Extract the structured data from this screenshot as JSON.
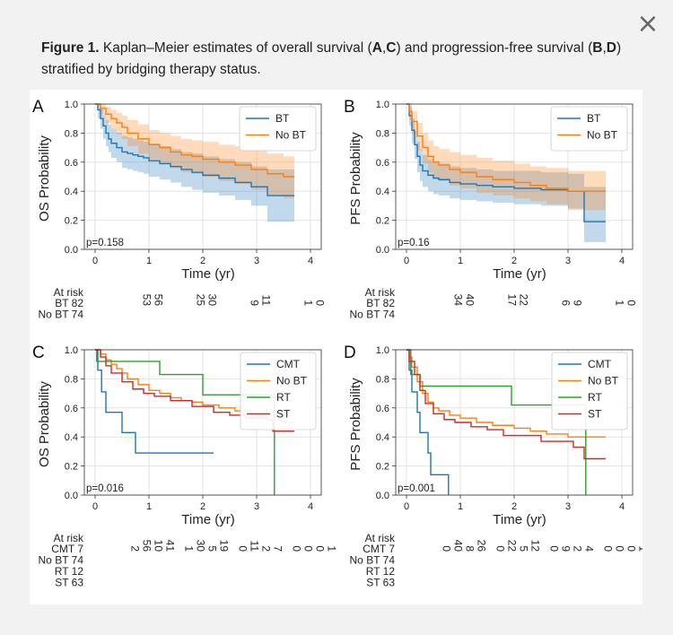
{
  "ui": {
    "close_glyph": "×"
  },
  "caption": {
    "figure_label": "Figure 1.",
    "part1": " Kaplan–Meier estimates of overall survival (",
    "A": "A",
    "comma1": ",",
    "C": "C",
    "part2": ") and progression-free survival (",
    "B": "B",
    "comma2": ",",
    "D": "D",
    "part3": ") stratified by bridging therapy status."
  },
  "colors": {
    "blue": "#1f77b4",
    "orange": "#ff7f0e",
    "green": "#2ca02c",
    "red": "#d62728"
  },
  "chart_data": [
    {
      "panel": "A",
      "type": "line",
      "subtype": "kaplan-meier",
      "ylabel": "OS Probability",
      "xlabel": "Time (yr)",
      "xlim": [
        -0.2,
        4.2
      ],
      "ylim": [
        0,
        1.0
      ],
      "xticks": [
        0,
        1,
        2,
        3,
        4
      ],
      "yticks": [
        0.0,
        0.2,
        0.4,
        0.6,
        0.8,
        1.0
      ],
      "yticklabels": [
        "0.0",
        "0.2",
        "0.4",
        "0.6",
        "0.8",
        "1.0"
      ],
      "pvalue": "p=0.158",
      "series": [
        {
          "name": "BT",
          "color": "#1f77b4",
          "x": [
            0,
            0.05,
            0.1,
            0.15,
            0.2,
            0.25,
            0.3,
            0.4,
            0.5,
            0.6,
            0.7,
            0.8,
            0.9,
            1.0,
            1.2,
            1.4,
            1.6,
            1.8,
            2.0,
            2.3,
            2.6,
            2.9,
            3.2,
            3.7
          ],
          "y": [
            1.0,
            0.96,
            0.9,
            0.85,
            0.8,
            0.76,
            0.73,
            0.7,
            0.67,
            0.66,
            0.65,
            0.64,
            0.63,
            0.61,
            0.59,
            0.57,
            0.55,
            0.53,
            0.51,
            0.49,
            0.46,
            0.43,
            0.37,
            0.37
          ],
          "ci_low": [
            1.0,
            0.9,
            0.83,
            0.76,
            0.71,
            0.67,
            0.63,
            0.6,
            0.56,
            0.55,
            0.54,
            0.53,
            0.52,
            0.5,
            0.48,
            0.46,
            0.43,
            0.41,
            0.39,
            0.37,
            0.34,
            0.3,
            0.19,
            0.19
          ],
          "ci_high": [
            1.0,
            1.0,
            0.97,
            0.93,
            0.89,
            0.86,
            0.83,
            0.8,
            0.78,
            0.77,
            0.76,
            0.75,
            0.74,
            0.73,
            0.71,
            0.69,
            0.67,
            0.66,
            0.64,
            0.62,
            0.6,
            0.57,
            0.55,
            0.55
          ]
        },
        {
          "name": "No BT",
          "color": "#ff7f0e",
          "x": [
            0,
            0.1,
            0.2,
            0.3,
            0.4,
            0.5,
            0.6,
            0.8,
            1.0,
            1.2,
            1.4,
            1.6,
            1.8,
            2.0,
            2.3,
            2.6,
            2.9,
            3.2,
            3.5,
            3.7
          ],
          "y": [
            1.0,
            0.97,
            0.93,
            0.9,
            0.87,
            0.84,
            0.8,
            0.76,
            0.72,
            0.7,
            0.67,
            0.65,
            0.64,
            0.62,
            0.6,
            0.58,
            0.55,
            0.52,
            0.5,
            0.5
          ],
          "ci_low": [
            1.0,
            0.93,
            0.87,
            0.83,
            0.79,
            0.76,
            0.71,
            0.66,
            0.62,
            0.59,
            0.56,
            0.53,
            0.52,
            0.5,
            0.47,
            0.45,
            0.41,
            0.37,
            0.35,
            0.35
          ],
          "ci_high": [
            1.0,
            1.0,
            0.98,
            0.96,
            0.94,
            0.92,
            0.89,
            0.86,
            0.82,
            0.8,
            0.78,
            0.76,
            0.75,
            0.74,
            0.72,
            0.71,
            0.69,
            0.66,
            0.64,
            0.64
          ]
        }
      ],
      "risk_table": {
        "title": "At risk",
        "times": [
          0,
          1,
          2,
          3,
          4
        ],
        "rows": [
          {
            "label": "BT",
            "values": [
              "82",
              "53",
              "25",
              "9",
              "1"
            ]
          },
          {
            "label": "No BT",
            "values": [
              "74",
              "56",
              "30",
              "11",
              "0"
            ]
          }
        ]
      }
    },
    {
      "panel": "B",
      "type": "line",
      "subtype": "kaplan-meier",
      "ylabel": "PFS Probability",
      "xlabel": "Time (yr)",
      "xlim": [
        -0.2,
        4.2
      ],
      "ylim": [
        0,
        1.0
      ],
      "xticks": [
        0,
        1,
        2,
        3,
        4
      ],
      "yticks": [
        0.0,
        0.2,
        0.4,
        0.6,
        0.8,
        1.0
      ],
      "yticklabels": [
        "0.0",
        "0.2",
        "0.4",
        "0.6",
        "0.8",
        "1.0"
      ],
      "pvalue": "p=0.16",
      "series": [
        {
          "name": "BT",
          "color": "#1f77b4",
          "x": [
            0,
            0.05,
            0.1,
            0.15,
            0.2,
            0.25,
            0.3,
            0.4,
            0.5,
            0.6,
            0.8,
            1.0,
            1.3,
            1.6,
            2.0,
            2.5,
            3.0,
            3.3,
            3.7
          ],
          "y": [
            1.0,
            0.92,
            0.82,
            0.72,
            0.64,
            0.58,
            0.54,
            0.51,
            0.49,
            0.48,
            0.46,
            0.45,
            0.44,
            0.43,
            0.42,
            0.41,
            0.4,
            0.19,
            0.19
          ],
          "ci_low": [
            1.0,
            0.85,
            0.73,
            0.62,
            0.53,
            0.47,
            0.43,
            0.4,
            0.38,
            0.37,
            0.35,
            0.34,
            0.33,
            0.32,
            0.31,
            0.3,
            0.28,
            0.05,
            0.05
          ],
          "ci_high": [
            1.0,
            0.98,
            0.9,
            0.81,
            0.74,
            0.69,
            0.65,
            0.62,
            0.6,
            0.59,
            0.57,
            0.56,
            0.55,
            0.54,
            0.54,
            0.53,
            0.52,
            0.43,
            0.43
          ]
        },
        {
          "name": "No BT",
          "color": "#ff7f0e",
          "x": [
            0,
            0.05,
            0.1,
            0.2,
            0.3,
            0.4,
            0.5,
            0.6,
            0.8,
            1.0,
            1.3,
            1.6,
            2.0,
            2.3,
            2.6,
            3.0,
            3.3,
            3.7
          ],
          "y": [
            1.0,
            0.95,
            0.88,
            0.78,
            0.7,
            0.64,
            0.6,
            0.58,
            0.55,
            0.53,
            0.5,
            0.48,
            0.46,
            0.44,
            0.42,
            0.4,
            0.4,
            0.4
          ],
          "ci_low": [
            1.0,
            0.89,
            0.8,
            0.68,
            0.59,
            0.53,
            0.49,
            0.47,
            0.44,
            0.42,
            0.39,
            0.37,
            0.35,
            0.33,
            0.31,
            0.27,
            0.27,
            0.27
          ],
          "ci_high": [
            1.0,
            1.0,
            0.95,
            0.87,
            0.8,
            0.75,
            0.71,
            0.69,
            0.67,
            0.65,
            0.63,
            0.61,
            0.59,
            0.57,
            0.56,
            0.54,
            0.54,
            0.54
          ]
        }
      ],
      "risk_table": {
        "title": "At risk",
        "times": [
          0,
          1,
          2,
          3,
          4
        ],
        "rows": [
          {
            "label": "BT",
            "values": [
              "82",
              "34",
              "17",
              "6",
              "1"
            ]
          },
          {
            "label": "No BT",
            "values": [
              "74",
              "40",
              "22",
              "9",
              "0"
            ]
          }
        ]
      }
    },
    {
      "panel": "C",
      "type": "line",
      "subtype": "kaplan-meier",
      "ylabel": "OS Probability",
      "xlabel": "Time (yr)",
      "xlim": [
        -0.2,
        4.2
      ],
      "ylim": [
        0,
        1.0
      ],
      "xticks": [
        0,
        1,
        2,
        3,
        4
      ],
      "yticks": [
        0.0,
        0.2,
        0.4,
        0.6,
        0.8,
        1.0
      ],
      "yticklabels": [
        "0.0",
        "0.2",
        "0.4",
        "0.6",
        "0.8",
        "1.0"
      ],
      "pvalue": "p=0.016",
      "series": [
        {
          "name": "CMT",
          "color": "#1f77b4",
          "x": [
            0,
            0.05,
            0.12,
            0.2,
            0.3,
            0.5,
            0.75,
            2.2
          ],
          "y": [
            1.0,
            0.86,
            0.71,
            0.57,
            0.57,
            0.43,
            0.29,
            0.29
          ]
        },
        {
          "name": "No BT",
          "color": "#ff7f0e",
          "x": [
            0,
            0.1,
            0.2,
            0.3,
            0.4,
            0.5,
            0.6,
            0.8,
            1.0,
            1.2,
            1.4,
            1.6,
            1.8,
            2.0,
            2.3,
            2.6,
            2.9,
            3.2,
            3.5,
            3.7
          ],
          "y": [
            1.0,
            0.97,
            0.93,
            0.9,
            0.87,
            0.84,
            0.8,
            0.76,
            0.72,
            0.7,
            0.67,
            0.65,
            0.64,
            0.62,
            0.6,
            0.58,
            0.55,
            0.52,
            0.5,
            0.5
          ]
        },
        {
          "name": "RT",
          "color": "#2ca02c",
          "x": [
            0,
            0.03,
            1.2,
            2.0,
            3.3,
            3.33
          ],
          "y": [
            1.0,
            0.92,
            0.83,
            0.69,
            0.69,
            0.0
          ]
        },
        {
          "name": "ST",
          "color": "#d62728",
          "x": [
            0,
            0.1,
            0.2,
            0.3,
            0.5,
            0.7,
            0.9,
            1.1,
            1.4,
            1.8,
            2.2,
            2.5,
            2.8,
            3.2,
            3.3,
            3.7
          ],
          "y": [
            1.0,
            0.95,
            0.89,
            0.84,
            0.78,
            0.73,
            0.7,
            0.68,
            0.65,
            0.61,
            0.57,
            0.55,
            0.53,
            0.52,
            0.44,
            0.44
          ]
        }
      ],
      "risk_table": {
        "title": "At risk",
        "times": [
          0,
          1,
          2,
          3,
          4
        ],
        "rows": [
          {
            "label": "CMT",
            "values": [
              "7",
              "2",
              "1",
              "0",
              "0"
            ]
          },
          {
            "label": "No BT",
            "values": [
              "74",
              "56",
              "30",
              "11",
              "0"
            ]
          },
          {
            "label": "RT",
            "values": [
              "12",
              "10",
              "5",
              "2",
              "0"
            ]
          },
          {
            "label": "ST",
            "values": [
              "63",
              "41",
              "19",
              "7",
              "1"
            ]
          }
        ]
      }
    },
    {
      "panel": "D",
      "type": "line",
      "subtype": "kaplan-meier",
      "ylabel": "PFS Probability",
      "xlabel": "Time (yr)",
      "xlim": [
        -0.2,
        4.2
      ],
      "ylim": [
        0,
        1.0
      ],
      "xticks": [
        0,
        1,
        2,
        3,
        4
      ],
      "yticks": [
        0.0,
        0.2,
        0.4,
        0.6,
        0.8,
        1.0
      ],
      "yticklabels": [
        "0.0",
        "0.2",
        "0.4",
        "0.6",
        "0.8",
        "1.0"
      ],
      "pvalue": "p=0.001",
      "series": [
        {
          "name": "CMT",
          "color": "#1f77b4",
          "x": [
            0,
            0.05,
            0.1,
            0.2,
            0.25,
            0.3,
            0.4,
            0.45,
            0.75,
            0.78
          ],
          "y": [
            1.0,
            0.86,
            0.71,
            0.57,
            0.43,
            0.43,
            0.29,
            0.14,
            0.14,
            0.0
          ]
        },
        {
          "name": "No BT",
          "color": "#ff7f0e",
          "x": [
            0,
            0.05,
            0.1,
            0.2,
            0.3,
            0.4,
            0.5,
            0.6,
            0.8,
            1.0,
            1.3,
            1.6,
            2.0,
            2.3,
            2.6,
            3.0,
            3.3,
            3.7
          ],
          "y": [
            1.0,
            0.95,
            0.88,
            0.78,
            0.7,
            0.64,
            0.6,
            0.58,
            0.55,
            0.53,
            0.5,
            0.48,
            0.46,
            0.44,
            0.42,
            0.4,
            0.4,
            0.4
          ]
        },
        {
          "name": "RT",
          "color": "#2ca02c",
          "x": [
            0,
            0.08,
            0.25,
            1.95,
            3.3,
            3.33
          ],
          "y": [
            1.0,
            0.83,
            0.75,
            0.62,
            0.62,
            0.0
          ]
        },
        {
          "name": "ST",
          "color": "#d62728",
          "x": [
            0,
            0.05,
            0.15,
            0.25,
            0.35,
            0.5,
            0.7,
            0.9,
            1.2,
            1.5,
            1.8,
            2.5,
            3.1,
            3.3,
            3.7
          ],
          "y": [
            1.0,
            0.92,
            0.83,
            0.72,
            0.63,
            0.56,
            0.52,
            0.5,
            0.47,
            0.45,
            0.41,
            0.37,
            0.33,
            0.25,
            0.25
          ]
        }
      ],
      "risk_table": {
        "title": "At risk",
        "times": [
          0,
          1,
          2,
          3,
          4
        ],
        "rows": [
          {
            "label": "CMT",
            "values": [
              "7",
              "0",
              "0",
              "0",
              "0"
            ]
          },
          {
            "label": "No BT",
            "values": [
              "74",
              "40",
              "22",
              "9",
              "0"
            ]
          },
          {
            "label": "RT",
            "values": [
              "12",
              "8",
              "5",
              "2",
              "0"
            ]
          },
          {
            "label": "ST",
            "values": [
              "63",
              "26",
              "12",
              "4",
              "1"
            ]
          }
        ]
      }
    }
  ]
}
